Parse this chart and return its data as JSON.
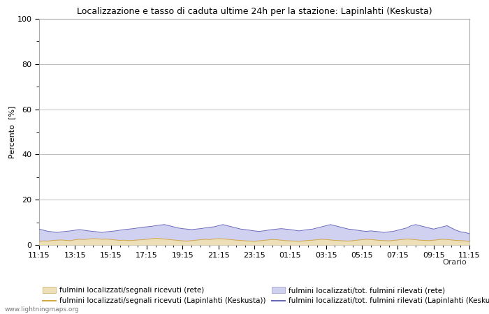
{
  "title": "Localizzazione e tasso di caduta ultime 24h per la stazione: Lapinlahti (Keskusta)",
  "xlabel": "Orario",
  "ylabel": "Percento  [%]",
  "ylim": [
    0,
    100
  ],
  "yticks": [
    0,
    20,
    40,
    60,
    80,
    100
  ],
  "yticks_minor": [
    10,
    30,
    50,
    70,
    90
  ],
  "xtick_labels": [
    "11:15",
    "13:15",
    "15:15",
    "17:15",
    "19:15",
    "21:15",
    "23:15",
    "01:15",
    "03:15",
    "05:15",
    "07:15",
    "09:15",
    "11:15"
  ],
  "background_color": "#ffffff",
  "plot_bg_color": "#ffffff",
  "grid_color": "#bbbbbb",
  "fill_color_rete": "#ede0b8",
  "fill_color_station": "#d0d0f0",
  "line_color_rete": "#d4a840",
  "line_color_station": "#6666bb",
  "legend_labels": [
    "fulmini localizzati/segnali ricevuti (rete)",
    "fulmini localizzati/segnali ricevuti (Lapinlahti (Keskusta))",
    "fulmini localizzati/tot. fulmini rilevati (rete)",
    "fulmini localizzati/tot. fulmini rilevati (Lapinlahti (Keskusta))"
  ],
  "watermark": "www.lightningmaps.org",
  "n_points": 97,
  "rete_values": [
    1.5,
    1.8,
    1.7,
    2.0,
    2.1,
    2.2,
    2.0,
    1.9,
    2.3,
    2.5,
    2.4,
    2.6,
    2.8,
    2.7,
    2.5,
    2.6,
    2.4,
    2.2,
    2.0,
    2.1,
    1.9,
    2.0,
    2.2,
    2.3,
    2.5,
    2.7,
    3.0,
    2.8,
    2.6,
    2.4,
    2.2,
    2.0,
    1.8,
    1.7,
    1.9,
    2.1,
    2.3,
    2.5,
    2.4,
    2.6,
    2.8,
    2.7,
    2.5,
    2.3,
    2.1,
    2.0,
    1.8,
    1.7,
    1.6,
    1.8,
    2.0,
    2.2,
    2.4,
    2.3,
    2.1,
    1.9,
    1.8,
    1.7,
    1.6,
    1.8,
    2.0,
    2.1,
    2.3,
    2.5,
    2.4,
    2.2,
    2.0,
    1.9,
    1.8,
    1.7,
    1.9,
    2.1,
    2.3,
    2.5,
    2.4,
    2.2,
    2.0,
    1.9,
    1.8,
    2.0,
    2.2,
    2.4,
    2.6,
    2.5,
    2.3,
    2.1,
    2.0,
    1.9,
    2.1,
    2.3,
    2.5,
    2.4,
    2.2,
    2.0,
    1.9,
    1.8,
    1.5
  ],
  "station_values": [
    7.0,
    6.5,
    6.0,
    5.8,
    5.5,
    5.8,
    6.0,
    6.2,
    6.5,
    6.8,
    6.5,
    6.2,
    6.0,
    5.8,
    5.5,
    5.8,
    6.0,
    6.2,
    6.5,
    6.8,
    7.0,
    7.2,
    7.5,
    7.8,
    8.0,
    8.2,
    8.5,
    8.8,
    9.0,
    8.5,
    8.0,
    7.5,
    7.2,
    7.0,
    6.8,
    7.0,
    7.2,
    7.5,
    7.8,
    8.0,
    8.5,
    9.0,
    8.5,
    8.0,
    7.5,
    7.0,
    6.8,
    6.5,
    6.2,
    6.0,
    6.2,
    6.5,
    6.8,
    7.0,
    7.2,
    7.0,
    6.8,
    6.5,
    6.2,
    6.5,
    6.8,
    7.0,
    7.5,
    8.0,
    8.5,
    9.0,
    8.5,
    8.0,
    7.5,
    7.0,
    6.8,
    6.5,
    6.2,
    6.0,
    6.2,
    6.0,
    5.8,
    5.5,
    5.8,
    6.0,
    6.5,
    7.0,
    7.5,
    8.5,
    9.0,
    8.5,
    8.0,
    7.5,
    7.0,
    7.5,
    8.0,
    8.5,
    7.5,
    6.5,
    5.8,
    5.5,
    5.0
  ]
}
